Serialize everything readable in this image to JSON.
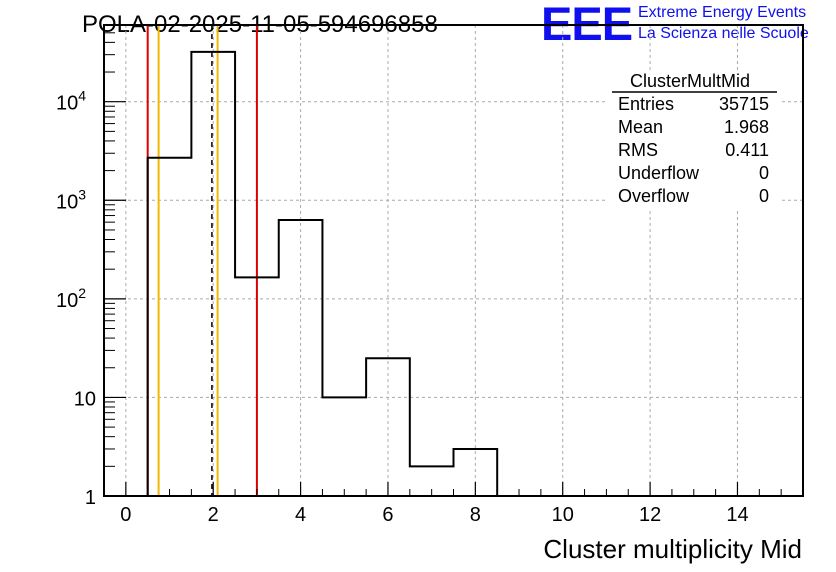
{
  "header": {
    "run_title": "POLA-02-2025-11-05-594696858",
    "logo_text": "EEE",
    "logo_line1": "Extreme Energy Events",
    "logo_line2": "La Scienza nelle Scuole",
    "logo_color": "#1010ee"
  },
  "stats_box": {
    "name": "ClusterMultMid",
    "rows": [
      {
        "label": "Entries",
        "value": "35715"
      },
      {
        "label": "Mean",
        "value": "1.968"
      },
      {
        "label": "RMS",
        "value": "0.411"
      },
      {
        "label": "Underflow",
        "value": "0"
      },
      {
        "label": "Overflow",
        "value": "0"
      }
    ]
  },
  "chart_data": {
    "type": "histogram",
    "title": "POLA-02-2025-11-05-594696858",
    "xlabel": "Cluster multiplicity Mid",
    "ylabel": "",
    "xlim": [
      -0.5,
      15.5
    ],
    "ylim": [
      1,
      60000
    ],
    "yscale": "log",
    "grid": true,
    "bin_width": 1,
    "bin_edges": [
      0.5,
      1.5,
      2.5,
      3.5,
      4.5,
      5.5,
      6.5,
      7.5,
      8.5
    ],
    "counts": [
      2700,
      32000,
      165,
      630,
      10,
      25,
      2,
      3
    ],
    "x_ticks": [
      0,
      2,
      4,
      6,
      8,
      10,
      12,
      14
    ],
    "x_tick_labels": [
      "0",
      "2",
      "4",
      "6",
      "8",
      "10",
      "12",
      "14"
    ],
    "y_ticks": [
      1,
      10,
      100,
      1000,
      10000
    ],
    "y_tick_labels": [
      {
        "base": "1",
        "exp": ""
      },
      {
        "base": "10",
        "exp": ""
      },
      {
        "base": "10",
        "exp": "2"
      },
      {
        "base": "10",
        "exp": "3"
      },
      {
        "base": "10",
        "exp": "4"
      }
    ],
    "vertical_lines": [
      {
        "x": 0.5,
        "color": "#dd0000",
        "style": "solid"
      },
      {
        "x": 0.75,
        "color": "#f2b800",
        "style": "solid"
      },
      {
        "x": 1.97,
        "color": "#000000",
        "style": "dashed"
      },
      {
        "x": 2.1,
        "color": "#f2b800",
        "style": "solid"
      },
      {
        "x": 3.0,
        "color": "#dd0000",
        "style": "solid"
      }
    ]
  }
}
